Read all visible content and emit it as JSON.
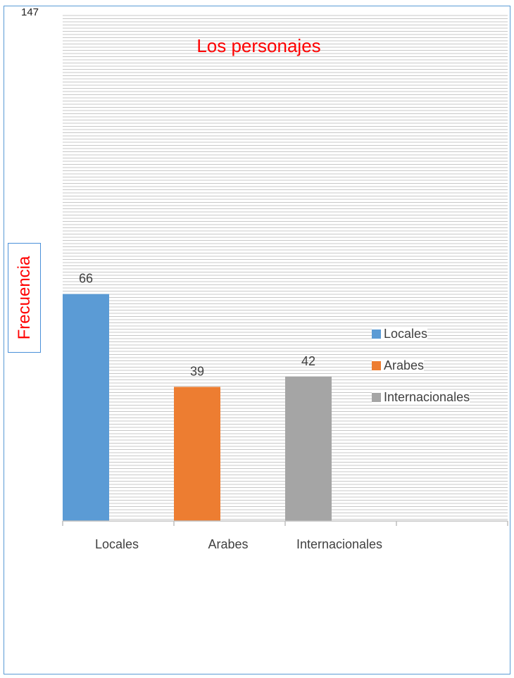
{
  "chart_data": {
    "type": "bar",
    "title": "Los personajes",
    "ylabel": "Frecuencia",
    "xlabel": "",
    "categories": [
      "Locales",
      "Arabes",
      "Internacionales"
    ],
    "values": [
      66,
      39,
      42
    ],
    "colors": [
      "#5b9bd5",
      "#ed7d31",
      "#a5a5a5"
    ],
    "ylim": [
      0,
      147
    ],
    "y_top_tick_label": "147",
    "legend": {
      "placement": "right",
      "entries": [
        "Locales",
        "Arabes",
        "Internacionales"
      ]
    },
    "grid": true,
    "gridline_color": "#c8c8c8",
    "axis_color": "#bfbfbf",
    "label_color": "#404040"
  }
}
